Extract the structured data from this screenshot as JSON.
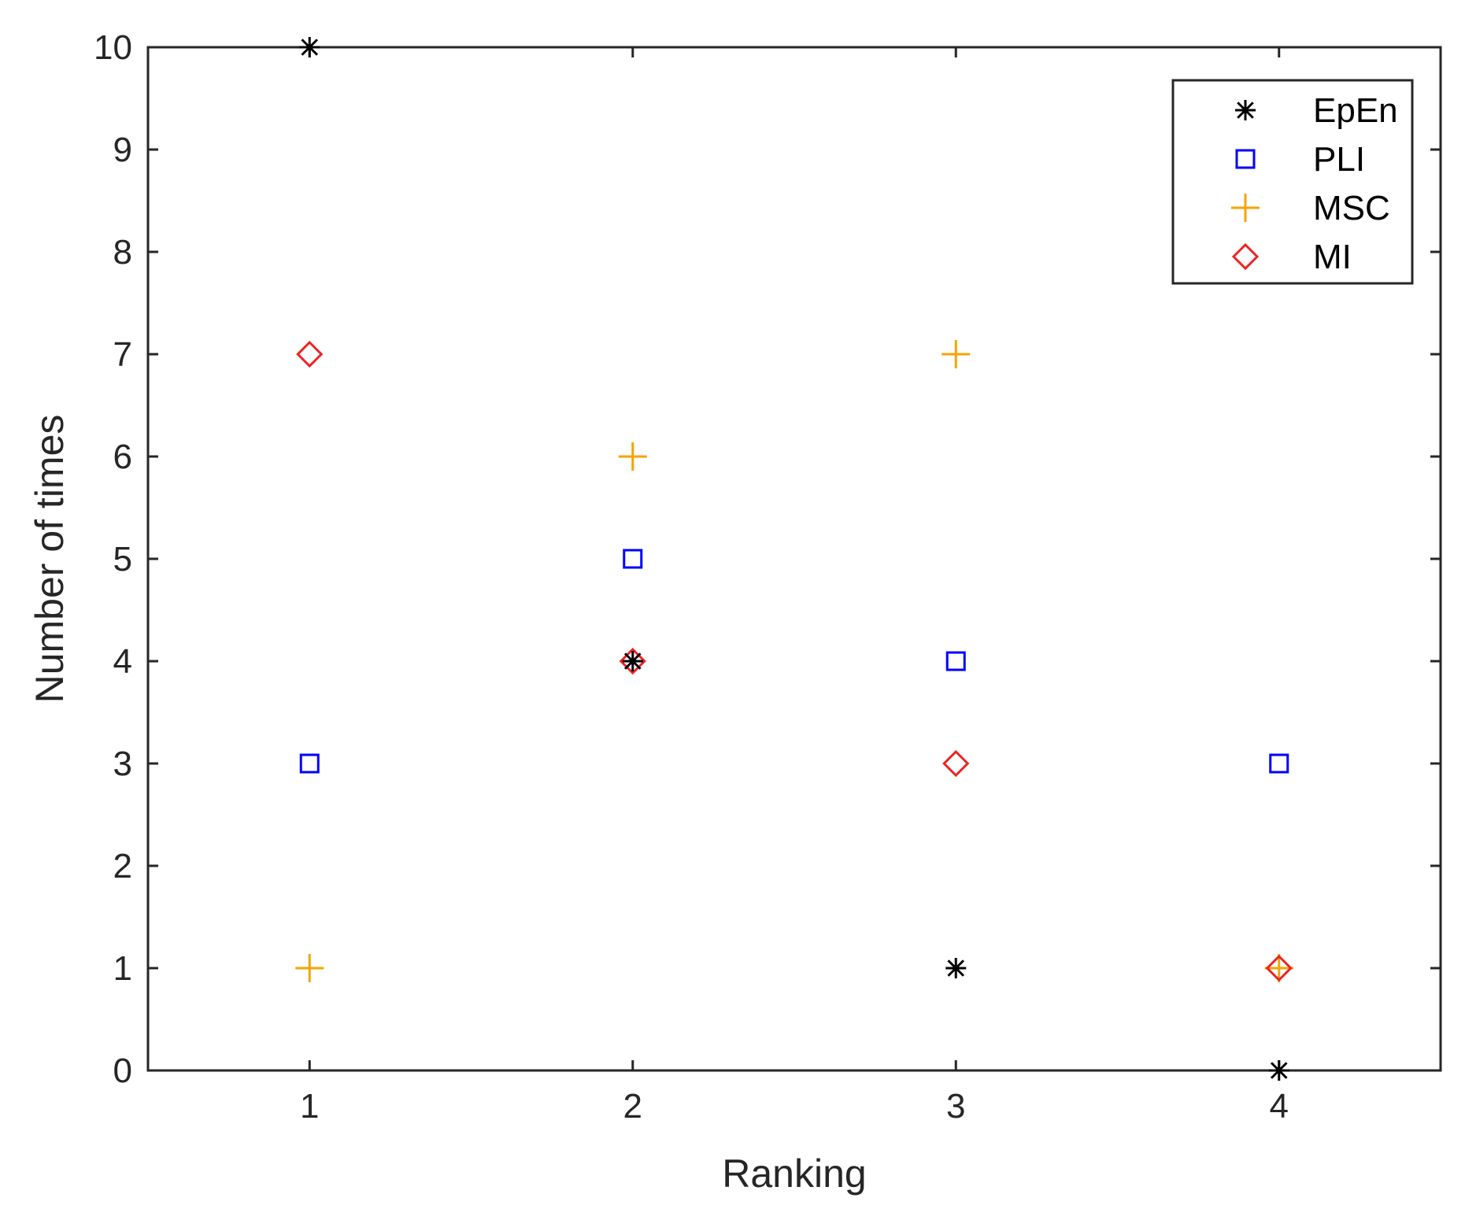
{
  "chart_data": {
    "type": "scatter",
    "title": "",
    "xlabel": "Ranking",
    "ylabel": "Number of times",
    "xlim": [
      0.5,
      4.5
    ],
    "ylim": [
      0,
      10
    ],
    "xticks": [
      "1",
      "2",
      "3",
      "4"
    ],
    "yticks": [
      "0",
      "1",
      "2",
      "3",
      "4",
      "5",
      "6",
      "7",
      "8",
      "9",
      "10"
    ],
    "grid": false,
    "legend_position": "top-right",
    "series": [
      {
        "name": "EpEn",
        "marker": "asterisk",
        "color": "#000000",
        "points": [
          [
            1,
            10
          ],
          [
            2,
            4
          ],
          [
            3,
            1
          ],
          [
            4,
            0
          ]
        ]
      },
      {
        "name": "PLI",
        "marker": "square",
        "color": "#0000ff",
        "points": [
          [
            1,
            3
          ],
          [
            2,
            5
          ],
          [
            3,
            4
          ],
          [
            4,
            3
          ]
        ]
      },
      {
        "name": "MSC",
        "marker": "plus",
        "color": "#f5a400",
        "points": [
          [
            1,
            1
          ],
          [
            2,
            6
          ],
          [
            3,
            7
          ],
          [
            4,
            1
          ]
        ]
      },
      {
        "name": "MI",
        "marker": "diamond",
        "color": "#ee2222",
        "points": [
          [
            1,
            7
          ],
          [
            2,
            4
          ],
          [
            3,
            3
          ],
          [
            4,
            1
          ]
        ]
      }
    ]
  }
}
